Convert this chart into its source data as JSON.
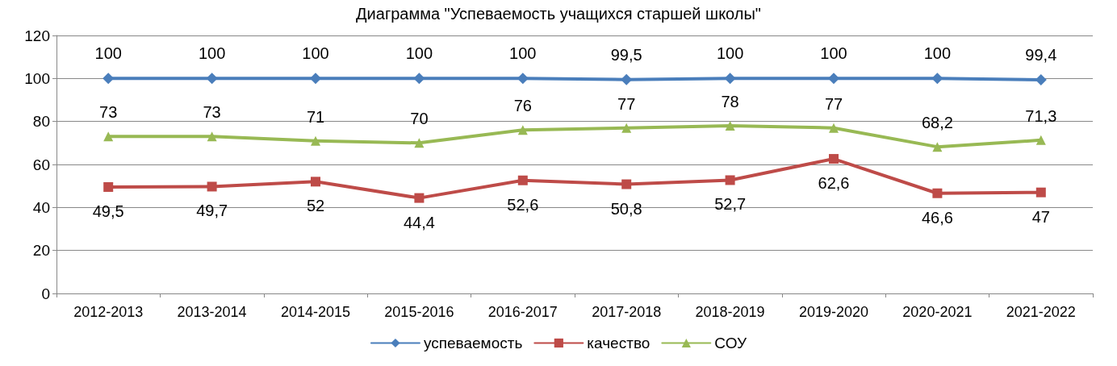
{
  "chart_data": {
    "type": "line",
    "title": "Диаграмма \"Успеваемость учащихся старшей школы\"",
    "categories": [
      "2012-2013",
      "2013-2014",
      "2014-2015",
      "2015-2016",
      "2016-2017",
      "2017-2018",
      "2018-2019",
      "2019-2020",
      "2020-2021",
      "2021-2022"
    ],
    "series": [
      {
        "name": "успеваемость",
        "color": "#4a7ebb",
        "marker": "diamond",
        "values": [
          100,
          100,
          100,
          100,
          100,
          99.5,
          100,
          100,
          100,
          99.4
        ],
        "value_labels": [
          "100",
          "100",
          "100",
          "100",
          "100",
          "99,5",
          "100",
          "100",
          "100",
          "99,4"
        ]
      },
      {
        "name": "качество",
        "color": "#be4b48",
        "marker": "square",
        "values": [
          49.5,
          49.7,
          52,
          44.4,
          52.6,
          50.8,
          52.7,
          62.6,
          46.6,
          47
        ],
        "value_labels": [
          "49,5",
          "49,7",
          "52",
          "44,4",
          "52,6",
          "50,8",
          "52,7",
          "62,6",
          "46,6",
          "47"
        ]
      },
      {
        "name": "СОУ",
        "color": "#98b954",
        "marker": "triangle",
        "values": [
          73,
          73,
          71,
          70,
          76,
          77,
          78,
          77,
          68.2,
          71.3
        ],
        "value_labels": [
          "73",
          "73",
          "71",
          "70",
          "76",
          "77",
          "78",
          "77",
          "68,2",
          "71,3"
        ]
      }
    ],
    "ylim": [
      0,
      120
    ],
    "yticks": [
      0,
      20,
      40,
      60,
      80,
      100,
      120
    ],
    "grid": "y",
    "legend": "bottom",
    "line_style": "solid"
  }
}
